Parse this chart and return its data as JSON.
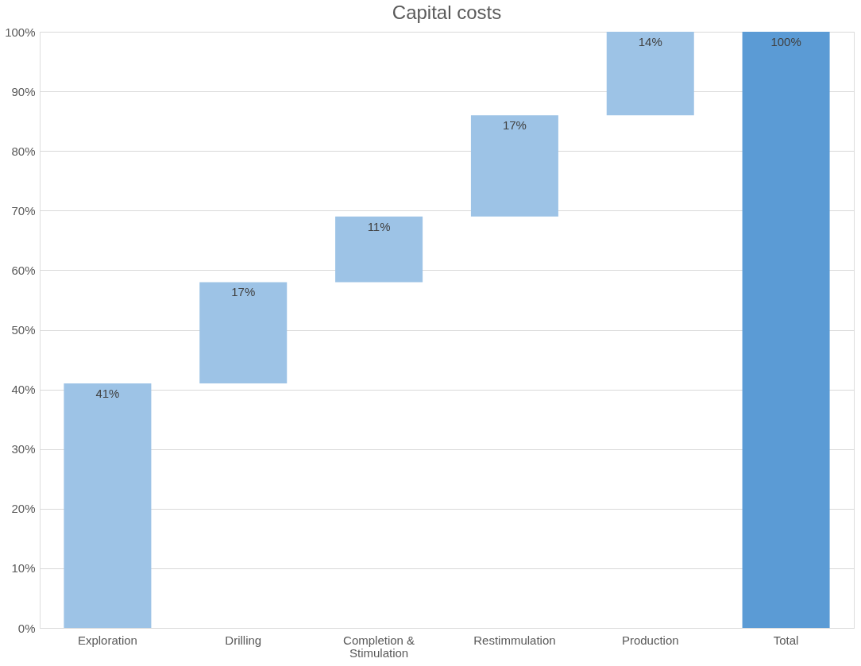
{
  "chart_data": {
    "type": "bar",
    "title": "Capital costs",
    "categories": [
      "Exploration",
      "Drilling",
      "Completion & Stimulation",
      "Restimmulation",
      "Production",
      "Total"
    ],
    "values": [
      41,
      17,
      11,
      17,
      14,
      100
    ],
    "base": [
      0,
      41,
      58,
      69,
      86,
      0
    ],
    "colors": [
      "#9dc3e6",
      "#9dc3e6",
      "#9dc3e6",
      "#9dc3e6",
      "#9dc3e6",
      "#5b9bd5"
    ],
    "value_labels": [
      "41%",
      "17%",
      "11%",
      "17%",
      "14%",
      "100%"
    ],
    "ylim": [
      0,
      100
    ],
    "yticks": [
      {
        "value": 0,
        "label": "0%"
      },
      {
        "value": 10,
        "label": "10%"
      },
      {
        "value": 20,
        "label": "20%"
      },
      {
        "value": 30,
        "label": "30%"
      },
      {
        "value": 40,
        "label": "40%"
      },
      {
        "value": 50,
        "label": "50%"
      },
      {
        "value": 60,
        "label": "60%"
      },
      {
        "value": 70,
        "label": "70%"
      },
      {
        "value": 80,
        "label": "80%"
      },
      {
        "value": 90,
        "label": "90%"
      },
      {
        "value": 100,
        "label": "100%"
      }
    ],
    "grid": "y"
  }
}
